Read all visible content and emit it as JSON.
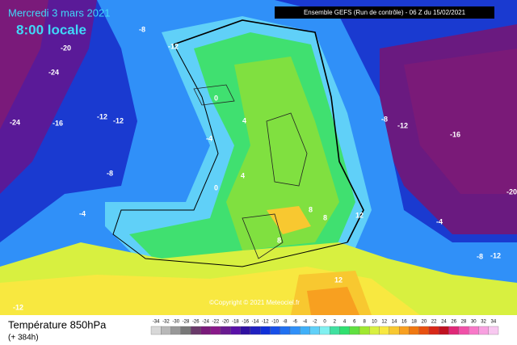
{
  "header": {
    "title": "Mercredi 3 mars 2021",
    "time": "8:00 locale",
    "run": "Ensemble GEFS  (Run de contrôle) - 06 Z du 15/02/2021"
  },
  "footer": {
    "parameter": "Température 850hPa",
    "lead": "(+ 384h)",
    "copyright": "©Copyright © 2021 Meteociel.fr"
  },
  "contour_labels": [
    -20,
    -24,
    -24,
    -16,
    -12,
    -12,
    -8,
    -12,
    -8,
    -4,
    -4,
    0,
    4,
    4,
    0,
    -8,
    -12,
    -16,
    -20,
    -4,
    -8,
    -12,
    8,
    8,
    8,
    12,
    -12,
    12
  ],
  "legend": [
    {
      "value": -34,
      "color": "#d8d8d8"
    },
    {
      "value": -32,
      "color": "#b8b8b8"
    },
    {
      "value": -30,
      "color": "#989898"
    },
    {
      "value": -28,
      "color": "#787878"
    },
    {
      "value": -26,
      "color": "#6a3a6a"
    },
    {
      "value": -24,
      "color": "#7a1a7a"
    },
    {
      "value": -22,
      "color": "#8a1a8a"
    },
    {
      "value": -20,
      "color": "#6a1a90"
    },
    {
      "value": -18,
      "color": "#5a10a8"
    },
    {
      "value": -16,
      "color": "#3010a0"
    },
    {
      "value": -14,
      "color": "#2020c0"
    },
    {
      "value": -12,
      "color": "#1030d8"
    },
    {
      "value": -10,
      "color": "#1850e8"
    },
    {
      "value": -8,
      "color": "#2070f0"
    },
    {
      "value": -6,
      "color": "#3090f8"
    },
    {
      "value": -4,
      "color": "#40b0f8"
    },
    {
      "value": -2,
      "color": "#60d0f8"
    },
    {
      "value": 0,
      "color": "#80f0f0"
    },
    {
      "value": 2,
      "color": "#40e0a0"
    },
    {
      "value": 4,
      "color": "#30e070"
    },
    {
      "value": 6,
      "color": "#60e040"
    },
    {
      "value": 8,
      "color": "#a0e830"
    },
    {
      "value": 10,
      "color": "#d8f040"
    },
    {
      "value": 12,
      "color": "#f8e840"
    },
    {
      "value": 14,
      "color": "#f8c830"
    },
    {
      "value": 16,
      "color": "#f8a020"
    },
    {
      "value": 18,
      "color": "#f07810"
    },
    {
      "value": 20,
      "color": "#e85010"
    },
    {
      "value": 22,
      "color": "#d82818"
    },
    {
      "value": 24,
      "color": "#c01020"
    },
    {
      "value": 26,
      "color": "#e02878"
    },
    {
      "value": 28,
      "color": "#f050a8"
    },
    {
      "value": 30,
      "color": "#f878c8"
    },
    {
      "value": 32,
      "color": "#f8a0e0"
    },
    {
      "value": 34,
      "color": "#f8c8f0"
    }
  ]
}
